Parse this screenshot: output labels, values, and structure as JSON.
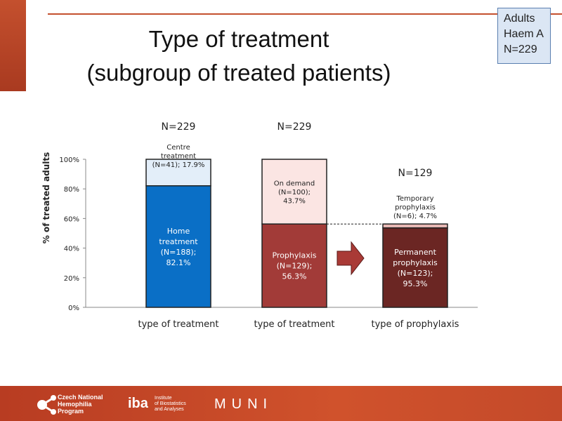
{
  "title": [
    "Type of treatment",
    "(subgroup of treated patients)"
  ],
  "info_box": [
    "Adults",
    "Haem A",
    "N=229"
  ],
  "chart_data": {
    "type": "bar",
    "stacked": true,
    "ylabel": "% of treated adults",
    "ylim": [
      0,
      100
    ],
    "yticks": [
      "0%",
      "20%",
      "40%",
      "60%",
      "80%",
      "100%"
    ],
    "grid": false,
    "bars": [
      {
        "category": "type of treatment",
        "n_label": "N=229",
        "segments": [
          {
            "value": 82.1,
            "label": [
              "Home",
              "treatment",
              "(N=188);",
              "82.1%"
            ],
            "color": "#0a6fc6",
            "text_color": "#ffffff"
          },
          {
            "value": 17.9,
            "label": [
              "Centre",
              "treatment",
              "(N=41); 17.9%"
            ],
            "color": "#e3eef9",
            "text_color": "#222222"
          }
        ]
      },
      {
        "category": "type of treatment",
        "n_label": "N=229",
        "segments": [
          {
            "value": 56.3,
            "label": [
              "Prophylaxis",
              "(N=129);",
              "56.3%"
            ],
            "color": "#a23b38",
            "text_color": "#ffffff"
          },
          {
            "value": 43.7,
            "label": [
              "On demand",
              "(N=100);",
              "43.7%"
            ],
            "color": "#fbe5e3",
            "text_color": "#222222"
          }
        ]
      },
      {
        "category": "type of prophylaxis",
        "n_label": "N=129",
        "segments": [
          {
            "value": 95.3,
            "label": [
              "Permanent",
              "prophylaxis",
              "(N=123);",
              "95.3%"
            ],
            "color": "#6b2623",
            "text_color": "#ffffff"
          },
          {
            "value": 4.7,
            "label": [
              "Temporary",
              "prophylaxis",
              "(N=6); 4.7%"
            ],
            "color": "#e7b8b4",
            "text_color": "#222222"
          }
        ],
        "scaled_to": 56.3
      }
    ]
  },
  "footer": {
    "logo1": [
      "Czech National",
      "Hemophilia",
      "Program"
    ],
    "logo2_mark": "iba",
    "logo2": [
      "Institute",
      "of Biostatistics",
      "and Analyses"
    ],
    "logo3": "MUNI"
  }
}
